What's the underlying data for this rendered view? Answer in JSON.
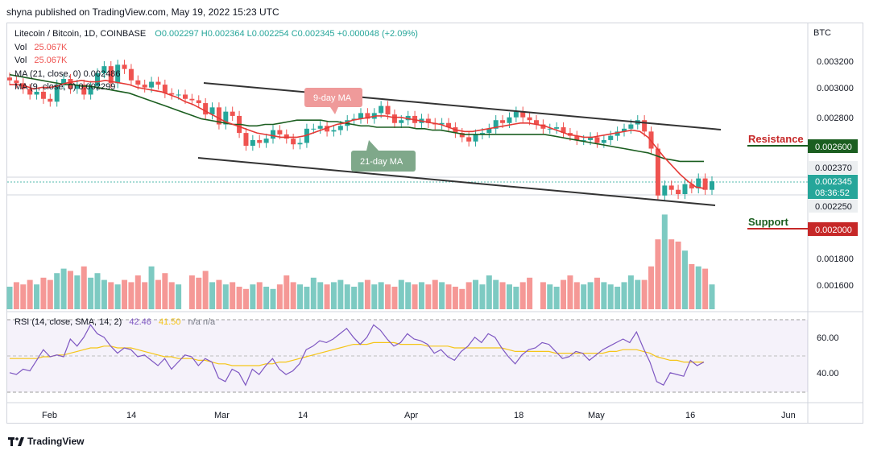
{
  "header": {
    "publisher": "shyna published on TradingView.com, May 19, 2022 15:23 UTC"
  },
  "legend": {
    "symbol": "Litecoin / Bitcoin, 1D, COINBASE",
    "ohlc": "O0.002297  H0.002364  L0.002254  C0.002345  +0.000048 (+2.09%)",
    "vol1_label": "Vol",
    "vol1_value": "25.067K",
    "vol2_label": "Vol",
    "vol2_value": "25.067K",
    "ma21": "MA (21, close, 0)  0.002486",
    "ma9": "MA (9, close, 0)  0.002299",
    "rsi_label": "RSI (14, close, SMA, 14, 2)",
    "rsi_value": "42.46",
    "rsi_sma": "41.50",
    "rsi_na": "n/a  n/a"
  },
  "annotations": {
    "ma9_tag": "9-day MA",
    "ma21_tag": "21-day MA",
    "resistance": "Resistance",
    "support": "Support"
  },
  "colors": {
    "up": "#26a69a",
    "down": "#ef5350",
    "ma9": "#e53935",
    "ma21": "#1b5e20",
    "rsi": "#7e57c2",
    "rsi_sma": "#f5c518",
    "resistance_tag": "#1b5e20",
    "support_tag": "#c62828",
    "price_tag": "#26a69a"
  },
  "footer": {
    "brand": "TradingView"
  },
  "chart_data": {
    "type": "candlestick",
    "currency": "BTC",
    "x_ticks": [
      "Feb",
      "14",
      "Mar",
      "14",
      "Apr",
      "18",
      "May",
      "16",
      "Jun"
    ],
    "price_ticks": [
      "0.003200",
      "0.003000",
      "0.002800",
      "0.002370",
      "0.001800",
      "0.001600"
    ],
    "price_tags": {
      "resistance": "0.002600",
      "support": "0.002000",
      "current": "0.002345",
      "countdown": "08:36:52",
      "upper": "0.002370",
      "lower": "0.002250"
    },
    "rsi_ticks": [
      "60.00",
      "40.00"
    ],
    "closes": [
      0.00306,
      0.00304,
      0.003,
      0.00296,
      0.00298,
      0.00293,
      0.00291,
      0.00303,
      0.00307,
      0.003,
      0.00303,
      0.00296,
      0.00302,
      0.00311,
      0.00316,
      0.00304,
      0.00317,
      0.00314,
      0.00306,
      0.00303,
      0.00301,
      0.00305,
      0.00303,
      0.00297,
      0.00296,
      0.00296,
      0.00293,
      0.00292,
      0.0029,
      0.00282,
      0.00287,
      0.00275,
      0.00284,
      0.00281,
      0.00269,
      0.0026,
      0.00264,
      0.00262,
      0.00265,
      0.00271,
      0.00268,
      0.00265,
      0.00261,
      0.00262,
      0.00272,
      0.00272,
      0.00274,
      0.0027,
      0.00271,
      0.00274,
      0.00278,
      0.00279,
      0.00283,
      0.00279,
      0.00283,
      0.00288,
      0.00282,
      0.00276,
      0.00278,
      0.00281,
      0.00276,
      0.00279,
      0.00276,
      0.00275,
      0.00276,
      0.00273,
      0.00269,
      0.00266,
      0.00263,
      0.00268,
      0.00269,
      0.00272,
      0.00278,
      0.00276,
      0.0028,
      0.00284,
      0.0028,
      0.00278,
      0.00275,
      0.00272,
      0.00272,
      0.00273,
      0.00269,
      0.00267,
      0.00264,
      0.00264,
      0.00266,
      0.00262,
      0.00264,
      0.00267,
      0.0027,
      0.00272,
      0.00275,
      0.00278,
      0.0027,
      0.00258,
      0.00225,
      0.00232,
      0.00229,
      0.00226,
      0.00233,
      0.0023,
      0.00237,
      0.00229,
      0.00235
    ],
    "ma9": [
      0.00303,
      0.00303,
      0.00302,
      0.003,
      0.00301,
      0.00301,
      0.00302,
      0.00304,
      0.00305,
      0.00306,
      0.00305,
      0.00305,
      0.00306,
      0.00305,
      0.00304,
      0.00303,
      0.00301,
      0.003,
      0.00299,
      0.00298,
      0.00296,
      0.00294,
      0.00291,
      0.00289,
      0.00286,
      0.00283,
      0.0028,
      0.00277,
      0.00275,
      0.00273,
      0.00271,
      0.00269,
      0.00268,
      0.00267,
      0.00266,
      0.00266,
      0.00266,
      0.00267,
      0.00269,
      0.00271,
      0.00273,
      0.00275,
      0.00276,
      0.00278,
      0.00279,
      0.0028,
      0.00281,
      0.00281,
      0.0028,
      0.0028,
      0.00279,
      0.00278,
      0.00277,
      0.00276,
      0.00275,
      0.00273,
      0.00271,
      0.0027,
      0.0027,
      0.00271,
      0.00272,
      0.00273,
      0.00274,
      0.00275,
      0.00276,
      0.00276,
      0.00275,
      0.00274,
      0.00272,
      0.0027,
      0.00268,
      0.00267,
      0.00266,
      0.00266,
      0.00267,
      0.00268,
      0.00269,
      0.0027,
      0.00271,
      0.0027,
      0.00266,
      0.00259,
      0.00252,
      0.00246,
      0.0024,
      0.00235,
      0.00231,
      0.0023
    ],
    "ma21": [
      0.0031,
      0.00309,
      0.00308,
      0.00307,
      0.00306,
      0.00305,
      0.00304,
      0.00303,
      0.00303,
      0.00302,
      0.00302,
      0.00301,
      0.003,
      0.00299,
      0.00298,
      0.00297,
      0.00295,
      0.00293,
      0.00291,
      0.00289,
      0.00287,
      0.00285,
      0.00283,
      0.00281,
      0.00279,
      0.00278,
      0.00277,
      0.00276,
      0.00275,
      0.00275,
      0.00274,
      0.00274,
      0.00275,
      0.00275,
      0.00276,
      0.00277,
      0.00278,
      0.00278,
      0.00278,
      0.00278,
      0.00277,
      0.00277,
      0.00276,
      0.00275,
      0.00274,
      0.00274,
      0.00273,
      0.00273,
      0.00273,
      0.00273,
      0.00273,
      0.00272,
      0.00272,
      0.00271,
      0.00271,
      0.0027,
      0.00269,
      0.00268,
      0.00268,
      0.00268,
      0.00268,
      0.00268,
      0.00268,
      0.00268,
      0.00268,
      0.00268,
      0.00268,
      0.00268,
      0.00267,
      0.00266,
      0.00265,
      0.00264,
      0.00263,
      0.00262,
      0.00261,
      0.0026,
      0.00259,
      0.00258,
      0.00257,
      0.00256,
      0.00255,
      0.00253,
      0.00251,
      0.0025,
      0.00249,
      0.00249,
      0.00249,
      0.00249
    ],
    "volume": [
      1,
      1.2,
      1.1,
      1.3,
      1.1,
      1.4,
      1.3,
      1.6,
      1.8,
      1.7,
      1.5,
      1.9,
      1.4,
      1.6,
      1.3,
      1.2,
      1.1,
      1.3,
      1.2,
      1.5,
      1.2,
      1.9,
      1.3,
      1.6,
      1.2,
      1.1,
      1.5,
      1.4,
      1.7,
      1.2,
      1.3,
      1.1,
      1.2,
      1,
      0.9,
      1.1,
      1.2,
      1,
      0.9,
      1.1,
      1.5,
      1.2,
      1.1,
      1,
      1.4,
      1.2,
      1.1,
      1.2,
      1.3,
      1.1,
      1,
      1.2,
      1.3,
      1.1,
      1.2,
      1.1,
      1,
      1.3,
      1.2,
      1.1,
      1.2,
      1.1,
      1.3,
      1.2,
      1.1,
      1,
      0.9,
      1.2,
      1.3,
      1.1,
      1.5,
      1.3,
      1.2,
      1.1,
      1.0,
      1.2,
      1.4,
      1.2,
      1.1,
      1,
      1.3,
      1.5,
      1.2,
      1.1,
      1.2,
      1.4,
      1.2,
      1.1,
      1.0,
      1.2,
      1.5,
      1.3,
      1.3,
      1.9,
      3.1,
      4.2,
      3.1,
      3.0,
      2.6,
      2.0,
      1.9,
      1.8,
      1.1
    ],
    "rsi": [
      36,
      35,
      38,
      37,
      43,
      49,
      45,
      46,
      45,
      55,
      51,
      56,
      63,
      58,
      56,
      51,
      47,
      50,
      49,
      45,
      46,
      43,
      40,
      44,
      38,
      42,
      46,
      45,
      40,
      44,
      42,
      33,
      31,
      38,
      36,
      29,
      38,
      35,
      40,
      44,
      38,
      35,
      37,
      41,
      49,
      51,
      54,
      53,
      55,
      58,
      61,
      56,
      52,
      56,
      63,
      60,
      55,
      51,
      53,
      58,
      55,
      54,
      52,
      47,
      49,
      45,
      43,
      48,
      51,
      56,
      53,
      58,
      56,
      50,
      45,
      41,
      46,
      49,
      50,
      53,
      52,
      48,
      44,
      45,
      48,
      47,
      43,
      46,
      49,
      51,
      53,
      55,
      53,
      59,
      50,
      42,
      31,
      29,
      36,
      35,
      34,
      43,
      40,
      42
    ],
    "rsi_sma": [
      44,
      44,
      44,
      44,
      44,
      45,
      45,
      46,
      46,
      47,
      48,
      49,
      50,
      50,
      51,
      51,
      50,
      50,
      50,
      49,
      48,
      47,
      46,
      45,
      45,
      44,
      44,
      44,
      43,
      43,
      42,
      41,
      41,
      40,
      40,
      40,
      40,
      40,
      41,
      41,
      42,
      42,
      43,
      44,
      45,
      46,
      47,
      48,
      49,
      50,
      51,
      52,
      52,
      52,
      53,
      53,
      53,
      53,
      52,
      52,
      52,
      52,
      51,
      51,
      51,
      51,
      50,
      50,
      50,
      50,
      50,
      50,
      50,
      50,
      49,
      48,
      48,
      48,
      48,
      48,
      48,
      47,
      47,
      47,
      47,
      47,
      47,
      47,
      47,
      48,
      48,
      49,
      49,
      49,
      48,
      47,
      45,
      44,
      43,
      43,
      42,
      42,
      42,
      42
    ]
  }
}
